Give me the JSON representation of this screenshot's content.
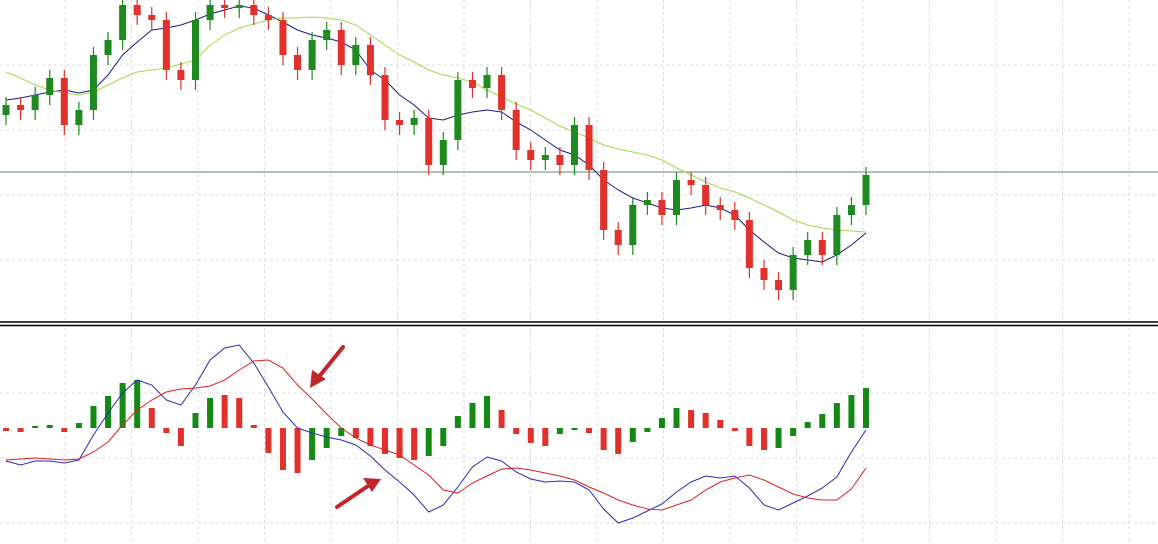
{
  "chart_data": [
    {
      "type": "candlestick",
      "ylim": [
        0,
        320
      ],
      "grid": true,
      "up_color": "#1f8a1f",
      "down_color": "#e2302b",
      "hline": 148,
      "hline_color": "#5f8a6a",
      "open": [
        205,
        215,
        210,
        225,
        242,
        195,
        210,
        265,
        280,
        315,
        305,
        300,
        250,
        240,
        300,
        315,
        312,
        315,
        305,
        300,
        265,
        250,
        280,
        290,
        255,
        275,
        245,
        200,
        195,
        202,
        155,
        180,
        240,
        232,
        245,
        210,
        170,
        160,
        165,
        155,
        195,
        150,
        90,
        75,
        115,
        120,
        105,
        140,
        135,
        115,
        110,
        100,
        52,
        40,
        30,
        65,
        80,
        65,
        105,
        115
      ],
      "high": [
        223,
        223,
        233,
        250,
        250,
        218,
        273,
        288,
        323,
        323,
        313,
        308,
        258,
        308,
        323,
        323,
        323,
        323,
        313,
        308,
        273,
        288,
        298,
        298,
        283,
        283,
        253,
        208,
        210,
        210,
        188,
        248,
        248,
        253,
        253,
        218,
        178,
        173,
        173,
        203,
        203,
        158,
        98,
        123,
        128,
        128,
        148,
        148,
        143,
        123,
        118,
        108,
        60,
        48,
        73,
        88,
        88,
        113,
        123,
        153
      ],
      "low": [
        195,
        200,
        200,
        215,
        185,
        185,
        200,
        255,
        270,
        295,
        290,
        240,
        230,
        230,
        290,
        302,
        302,
        295,
        290,
        255,
        240,
        240,
        270,
        245,
        245,
        235,
        190,
        185,
        185,
        145,
        145,
        170,
        222,
        222,
        200,
        160,
        150,
        150,
        145,
        145,
        140,
        80,
        65,
        65,
        105,
        95,
        95,
        125,
        105,
        100,
        90,
        42,
        30,
        20,
        20,
        55,
        55,
        55,
        95,
        105
      ],
      "close": [
        215,
        210,
        225,
        242,
        195,
        210,
        265,
        280,
        315,
        305,
        300,
        250,
        240,
        300,
        315,
        312,
        315,
        305,
        300,
        265,
        250,
        280,
        290,
        255,
        275,
        245,
        200,
        195,
        202,
        155,
        180,
        240,
        232,
        245,
        210,
        170,
        160,
        165,
        155,
        195,
        150,
        90,
        75,
        115,
        120,
        105,
        140,
        135,
        115,
        110,
        100,
        52,
        40,
        30,
        65,
        80,
        65,
        105,
        115,
        145
      ],
      "series": [
        {
          "color": "#1c1c8c",
          "values": [
            220,
            222,
            225,
            228,
            230,
            227,
            230,
            245,
            265,
            278,
            290,
            292,
            295,
            300,
            306,
            310,
            314,
            312,
            305,
            298,
            290,
            285,
            282,
            278,
            270,
            250,
            240,
            225,
            215,
            202,
            200,
            205,
            208,
            210,
            208,
            198,
            190,
            180,
            170,
            165,
            155,
            140,
            130,
            122,
            117,
            112,
            110,
            112,
            115,
            112,
            105,
            90,
            78,
            67,
            62,
            60,
            58,
            65,
            75,
            87
          ]
        },
        {
          "color": "#a6d94a",
          "values": [
            248,
            242,
            235,
            230,
            227,
            225,
            228,
            235,
            242,
            248,
            250,
            252,
            256,
            260,
            275,
            285,
            292,
            296,
            300,
            302,
            302,
            303,
            302,
            300,
            295,
            285,
            275,
            265,
            258,
            250,
            245,
            242,
            238,
            230,
            223,
            216,
            210,
            202,
            194,
            188,
            182,
            175,
            171,
            168,
            165,
            160,
            152,
            145,
            138,
            132,
            128,
            122,
            115,
            108,
            100,
            95,
            92,
            90,
            89,
            88
          ]
        }
      ]
    },
    {
      "type": "macd",
      "ylim": [
        -116,
        100
      ],
      "grid": true,
      "histogram": [
        -3,
        -4,
        2,
        3,
        -4,
        5,
        22,
        32,
        45,
        48,
        20,
        -5,
        -18,
        15,
        30,
        33,
        30,
        3,
        -25,
        -42,
        -45,
        -32,
        -20,
        -8,
        -10,
        -18,
        -26,
        -30,
        -32,
        -28,
        -18,
        12,
        25,
        32,
        18,
        -6,
        -15,
        -18,
        -6,
        -2,
        -5,
        -22,
        -26,
        -14,
        -4,
        10,
        20,
        18,
        15,
        8,
        -3,
        -18,
        -22,
        -20,
        -8,
        6,
        14,
        25,
        33,
        40
      ],
      "bar_colors": [
        "#e2302b",
        "#e2302b",
        "#138a13",
        "#138a13",
        "#e2302b",
        "#138a13",
        "#138a13",
        "#138a13",
        "#138a13",
        "#138a13",
        "#e2302b",
        "#e2302b",
        "#e2302b",
        "#138a13",
        "#138a13",
        "#e2302b",
        "#e2302b",
        "#e2302b",
        "#e2302b",
        "#e2302b",
        "#e2302b",
        "#138a13",
        "#138a13",
        "#138a13",
        "#e2302b",
        "#e2302b",
        "#e2302b",
        "#e2302b",
        "#e2302b",
        "#138a13",
        "#138a13",
        "#138a13",
        "#138a13",
        "#138a13",
        "#e2302b",
        "#e2302b",
        "#e2302b",
        "#e2302b",
        "#138a13",
        "#138a13",
        "#e2302b",
        "#e2302b",
        "#e2302b",
        "#138a13",
        "#138a13",
        "#138a13",
        "#138a13",
        "#e2302b",
        "#e2302b",
        "#e2302b",
        "#e2302b",
        "#e2302b",
        "#e2302b",
        "#138a13",
        "#138a13",
        "#138a13",
        "#138a13",
        "#138a13",
        "#138a13",
        "#138a13"
      ],
      "series": [
        {
          "color": "#2a2ac0",
          "values": [
            -33,
            -37,
            -33,
            -33,
            -35,
            -32,
            -7,
            15,
            35,
            48,
            43,
            28,
            23,
            43,
            68,
            80,
            83,
            65,
            41,
            16,
            0,
            -5,
            -9,
            -12,
            -17,
            -28,
            -42,
            -54,
            -67,
            -84,
            -77,
            -59,
            -39,
            -29,
            -33,
            -44,
            -51,
            -54,
            -53,
            -54,
            -62,
            -81,
            -95,
            -90,
            -83,
            -76,
            -64,
            -54,
            -48,
            -50,
            -48,
            -60,
            -77,
            -82,
            -75,
            -68,
            -60,
            -49,
            -24,
            -2
          ]
        },
        {
          "color": "#e02020",
          "values": [
            -32,
            -31,
            -30,
            -31,
            -32,
            -31,
            -24,
            -14,
            3,
            18,
            28,
            36,
            39,
            40,
            42,
            48,
            58,
            67,
            68,
            60,
            43,
            29,
            14,
            0,
            -10,
            -17,
            -22,
            -27,
            -37,
            -47,
            -62,
            -65,
            -55,
            -48,
            -41,
            -40,
            -42,
            -45,
            -48,
            -52,
            -59,
            -65,
            -72,
            -77,
            -81,
            -82,
            -77,
            -72,
            -62,
            -54,
            -50,
            -47,
            -52,
            -59,
            -66,
            -70,
            -72,
            -72,
            -61,
            -40
          ]
        }
      ]
    }
  ]
}
